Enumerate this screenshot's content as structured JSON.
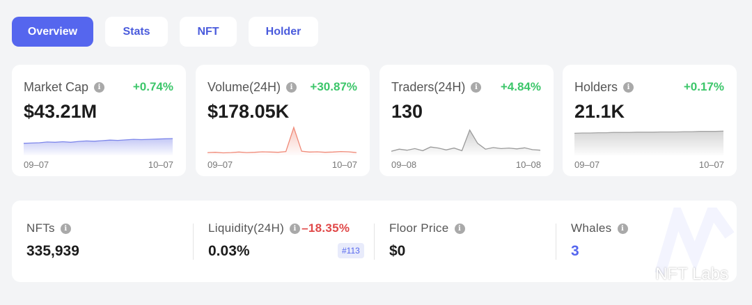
{
  "tabs": [
    {
      "label": "Overview",
      "active": true
    },
    {
      "label": "Stats",
      "active": false
    },
    {
      "label": "NFT",
      "active": false
    },
    {
      "label": "Holder",
      "active": false
    }
  ],
  "cards": [
    {
      "label": "Market Cap",
      "change": "+0.74%",
      "value": "$43.21M",
      "date_start": "09–07",
      "date_end": "10–07",
      "trend": [
        0.4,
        0.41,
        0.42,
        0.45,
        0.44,
        0.46,
        0.44,
        0.47,
        0.49,
        0.48,
        0.5,
        0.52,
        0.51,
        0.53,
        0.55,
        0.54,
        0.55,
        0.56,
        0.57,
        0.58
      ],
      "color": "#7d86ea"
    },
    {
      "label": "Volume(24H)",
      "change": "+30.87%",
      "value": "$178.05K",
      "date_start": "09–07",
      "date_end": "10–07",
      "trend": [
        0.05,
        0.06,
        0.04,
        0.05,
        0.07,
        0.05,
        0.06,
        0.08,
        0.07,
        0.06,
        0.09,
        1.0,
        0.1,
        0.07,
        0.08,
        0.06,
        0.07,
        0.09,
        0.08,
        0.05
      ],
      "color": "#f08a78"
    },
    {
      "label": "Traders(24H)",
      "change": "+4.84%",
      "value": "130",
      "date_start": "09–08",
      "date_end": "10–08",
      "trend": [
        0.1,
        0.18,
        0.14,
        0.2,
        0.12,
        0.26,
        0.22,
        0.15,
        0.22,
        0.12,
        0.9,
        0.4,
        0.18,
        0.24,
        0.2,
        0.22,
        0.19,
        0.23,
        0.16,
        0.14
      ],
      "color": "#9a9a9a"
    },
    {
      "label": "Holders",
      "change": "+0.17%",
      "value": "21.1K",
      "date_start": "09–07",
      "date_end": "10–07",
      "trend": [
        0.78,
        0.79,
        0.79,
        0.8,
        0.8,
        0.81,
        0.81,
        0.81,
        0.82,
        0.82,
        0.82,
        0.83,
        0.83,
        0.83,
        0.84,
        0.84,
        0.85,
        0.85,
        0.85,
        0.86
      ],
      "color": "#a3a3a3"
    }
  ],
  "stats": {
    "nfts_label": "NFTs",
    "nfts_value": "335,939",
    "liquidity_label": "Liquidity(24H)",
    "liquidity_change": "–18.35%",
    "liquidity_value": "0.03%",
    "liquidity_rank": "#113",
    "floor_label": "Floor Price",
    "floor_value": "$0",
    "whales_label": "Whales",
    "whales_value": "3"
  },
  "brand": {
    "name": "NFT Labs"
  },
  "colors": {
    "accent": "#5566ee",
    "positive": "#3cc66a",
    "negative": "#e04848"
  }
}
